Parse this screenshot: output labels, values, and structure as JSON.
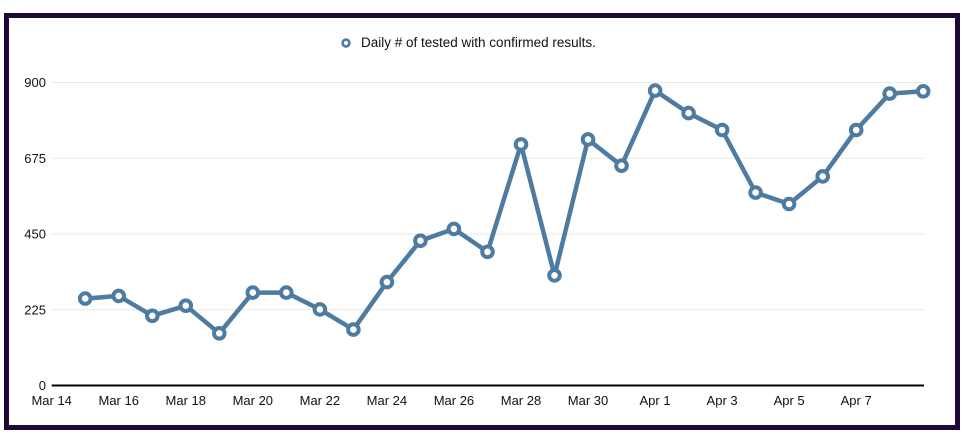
{
  "page": {
    "background": "#ffffff",
    "frame_border_color": "#1e0836"
  },
  "legend": {
    "label": "Daily # of tested with confirmed results.",
    "marker_icon": "open-circle-icon"
  },
  "chart_data": {
    "type": "line",
    "title": "",
    "legend_entries": [
      "Daily # of tested with confirmed results."
    ],
    "legend_position": "top-center",
    "x": [
      "Mar 15",
      "Mar 16",
      "Mar 17",
      "Mar 18",
      "Mar 19",
      "Mar 20",
      "Mar 21",
      "Mar 22",
      "Mar 23",
      "Mar 24",
      "Mar 25",
      "Mar 26",
      "Mar 27",
      "Mar 28",
      "Mar 29",
      "Mar 30",
      "Mar 31",
      "Apr 1",
      "Apr 2",
      "Apr 3",
      "Apr 4",
      "Apr 5",
      "Apr 6",
      "Apr 7",
      "Apr 8",
      "Apr 9"
    ],
    "values": [
      258,
      266,
      207,
      237,
      155,
      276,
      276,
      226,
      166,
      307,
      430,
      465,
      397,
      716,
      327,
      731,
      653,
      876,
      809,
      759,
      573,
      539,
      621,
      759,
      867,
      874
    ],
    "x_tick_labels": [
      "Mar 14",
      "Mar 16",
      "Mar 18",
      "Mar 20",
      "Mar 22",
      "Mar 24",
      "Mar 26",
      "Mar 28",
      "Mar 30",
      "Apr 1",
      "Apr 3",
      "Apr 5",
      "Apr 7"
    ],
    "x_tick_day_step": 2,
    "x_range_days": [
      "Mar 14",
      "Apr 9"
    ],
    "y_ticks": [
      0,
      225,
      450,
      675,
      900
    ],
    "ylim": [
      0,
      900
    ],
    "grid": "horizontal",
    "marker_style": "open-circle",
    "colors": {
      "line": "#4e7ba1",
      "marker_fill": "#ffffff",
      "grid": "#e9e9e9",
      "axis": "#000000",
      "text": "#111111"
    }
  }
}
